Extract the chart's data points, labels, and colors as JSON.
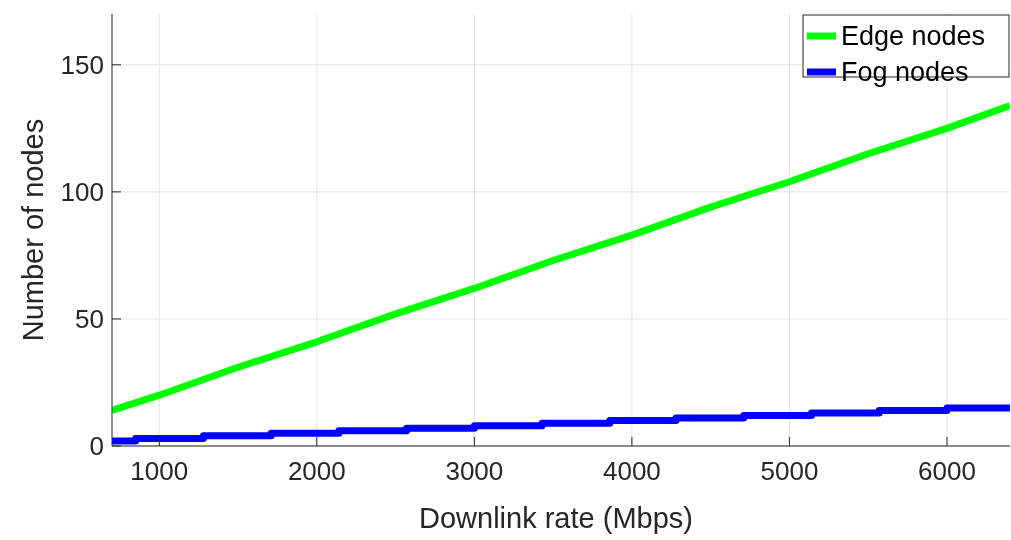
{
  "chart_data": {
    "type": "line",
    "xlabel": "Downlink rate (Mbps)",
    "ylabel": "Number of nodes",
    "xlim": [
      700,
      6400
    ],
    "xticks": [
      1000,
      2000,
      3000,
      4000,
      5000,
      6000
    ],
    "ylim": [
      0,
      170
    ],
    "yticks": [
      0,
      50,
      100,
      150
    ],
    "grid": true,
    "legend": "top right",
    "series": [
      {
        "name": "Edge nodes",
        "color": "#00ff00",
        "x": [
          700,
          1000,
          1500,
          2000,
          2500,
          3000,
          3500,
          4000,
          4500,
          5000,
          5500,
          6000,
          6400
        ],
        "values": [
          14,
          20,
          31,
          41,
          52,
          62,
          73,
          83,
          94,
          104,
          115,
          125,
          134
        ]
      },
      {
        "name": "Fog nodes",
        "color": "#0000ff",
        "type": "step",
        "x": [
          700,
          850,
          1280,
          1710,
          2140,
          2570,
          3000,
          3430,
          3860,
          4280,
          4710,
          5140,
          5570,
          6000,
          6400
        ],
        "values": [
          2,
          3,
          4,
          5,
          6,
          7,
          8,
          9,
          10,
          11,
          12,
          13,
          14,
          15,
          15
        ]
      }
    ]
  }
}
